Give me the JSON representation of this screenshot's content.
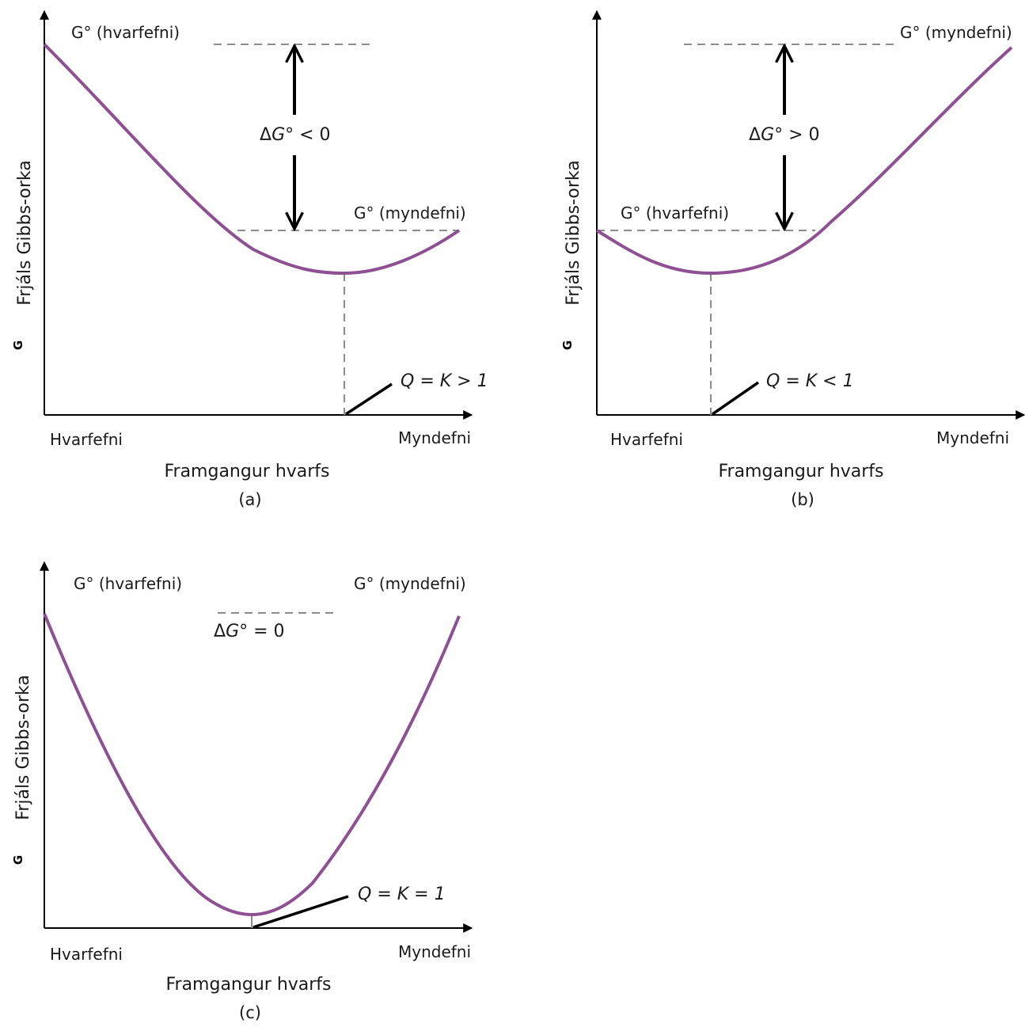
{
  "colors": {
    "curve": "#8e4f93",
    "axis": "#000000",
    "guide": "#8c8c8c"
  },
  "panels": [
    {
      "id": "a",
      "caption": "(a)",
      "xlabel": "Framgangur hvarfs",
      "ylabel": "Frjáls Gibbs-orka",
      "ylabel_symbol": "G",
      "x_start": "Hvarfefni",
      "x_end": "Myndefni",
      "g_reactants": "G° (hvarfefni)",
      "g_products": "G° (myndefni)",
      "delta": {
        "pre": "Δ",
        "sym": "G",
        "post": "° < 0"
      },
      "eq": {
        "q": "Q",
        "mid": " = ",
        "k": "K",
        "rest": " > 1"
      }
    },
    {
      "id": "b",
      "caption": "(b)",
      "xlabel": "Framgangur hvarfs",
      "ylabel": "Frjáls Gibbs-orka",
      "ylabel_symbol": "G",
      "x_start": "Hvarfefni",
      "x_end": "Myndefni",
      "g_reactants": "G° (hvarfefni)",
      "g_products": "G° (myndefni)",
      "delta": {
        "pre": "Δ",
        "sym": "G",
        "post": "° > 0"
      },
      "eq": {
        "q": "Q",
        "mid": " = ",
        "k": "K",
        "rest": " < 1"
      }
    },
    {
      "id": "c",
      "caption": "(c)",
      "xlabel": "Framgangur hvarfs",
      "ylabel": "Frjáls Gibbs-orka",
      "ylabel_symbol": "G",
      "x_start": "Hvarfefni",
      "x_end": "Myndefni",
      "g_reactants": "G° (hvarfefni)",
      "g_products": "G° (myndefni)",
      "delta": {
        "pre": "Δ",
        "sym": "G",
        "post": "° = 0"
      },
      "eq": {
        "q": "Q",
        "mid": " = ",
        "k": "K",
        "rest": " = 1"
      }
    }
  ]
}
